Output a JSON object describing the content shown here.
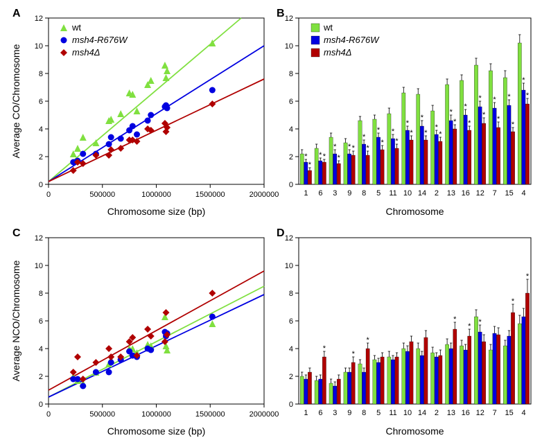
{
  "panelA": {
    "label": "A",
    "type": "scatter",
    "xlabel": "Chromosome size (bp)",
    "ylabel": "Average CO/Chromosome",
    "xlim": [
      0,
      2000000
    ],
    "ylim": [
      0,
      12
    ],
    "yticks": [
      0,
      2,
      4,
      6,
      8,
      10,
      12
    ],
    "xticks": [
      0,
      500000,
      1000000,
      1500000,
      2000000
    ],
    "legend": [
      {
        "label": "wt",
        "color": "#80E040",
        "marker": "triangle"
      },
      {
        "label": "msh4-R676W",
        "color": "#0000E0",
        "marker": "circle",
        "italic": true
      },
      {
        "label": "msh4Δ",
        "color": "#B00000",
        "marker": "diamond",
        "italic": true
      }
    ],
    "series": {
      "wt": {
        "color": "#80E040",
        "marker": "triangle",
        "points": [
          [
            230000,
            2.2
          ],
          [
            270000,
            2.6
          ],
          [
            320000,
            3.4
          ],
          [
            440000,
            3.0
          ],
          [
            560000,
            4.6
          ],
          [
            580000,
            4.7
          ],
          [
            670000,
            5.1
          ],
          [
            750000,
            6.6
          ],
          [
            780000,
            6.5
          ],
          [
            820000,
            5.3
          ],
          [
            920000,
            7.2
          ],
          [
            950000,
            7.5
          ],
          [
            1080000,
            8.6
          ],
          [
            1100000,
            8.2
          ],
          [
            1090000,
            7.7
          ],
          [
            1520000,
            10.2
          ]
        ],
        "line": {
          "intercept": 0.2,
          "slope": 6.6e-06
        }
      },
      "msh4R676W": {
        "color": "#0000E0",
        "marker": "circle",
        "points": [
          [
            230000,
            1.6
          ],
          [
            270000,
            1.7
          ],
          [
            320000,
            2.2
          ],
          [
            440000,
            2.2
          ],
          [
            560000,
            2.9
          ],
          [
            580000,
            3.4
          ],
          [
            670000,
            3.3
          ],
          [
            750000,
            3.9
          ],
          [
            780000,
            4.2
          ],
          [
            820000,
            3.6
          ],
          [
            920000,
            4.6
          ],
          [
            950000,
            5.0
          ],
          [
            1080000,
            5.6
          ],
          [
            1100000,
            5.5
          ],
          [
            1090000,
            5.7
          ],
          [
            1520000,
            6.8
          ]
        ],
        "line": {
          "intercept": 0.2,
          "slope": 4.9e-06
        }
      },
      "msh4D": {
        "color": "#B00000",
        "marker": "diamond",
        "points": [
          [
            230000,
            1.0
          ],
          [
            270000,
            1.6
          ],
          [
            320000,
            1.5
          ],
          [
            440000,
            2.1
          ],
          [
            560000,
            2.1
          ],
          [
            580000,
            2.5
          ],
          [
            670000,
            2.6
          ],
          [
            750000,
            3.2
          ],
          [
            780000,
            3.2
          ],
          [
            820000,
            3.1
          ],
          [
            920000,
            4.0
          ],
          [
            950000,
            3.9
          ],
          [
            1080000,
            4.4
          ],
          [
            1100000,
            4.1
          ],
          [
            1090000,
            3.8
          ],
          [
            1520000,
            5.8
          ]
        ],
        "line": {
          "intercept": 0.2,
          "slope": 3.7e-06
        }
      }
    }
  },
  "panelB": {
    "label": "B",
    "type": "bar",
    "xlabel": "Chromosome",
    "ylabel": "",
    "ylim": [
      0,
      12
    ],
    "yticks": [
      0,
      2,
      4,
      6,
      8,
      10,
      12
    ],
    "categories": [
      "1",
      "6",
      "3",
      "9",
      "8",
      "5",
      "11",
      "10",
      "14",
      "2",
      "13",
      "16",
      "12",
      "7",
      "15",
      "4"
    ],
    "legend": [
      {
        "label": "wt",
        "color": "#80E040"
      },
      {
        "label": "msh4-R676W",
        "color": "#0000E0",
        "italic": true
      },
      {
        "label": "msh4Δ",
        "color": "#B00000",
        "italic": true
      }
    ],
    "bars": {
      "wt": {
        "color": "#80E040",
        "values": [
          2.2,
          2.6,
          3.4,
          3.0,
          4.6,
          4.7,
          5.1,
          6.6,
          6.5,
          5.3,
          7.2,
          7.5,
          8.6,
          8.2,
          7.7,
          10.2
        ],
        "err": [
          0.3,
          0.3,
          0.3,
          0.3,
          0.3,
          0.3,
          0.4,
          0.4,
          0.4,
          0.4,
          0.4,
          0.4,
          0.5,
          0.5,
          0.5,
          0.6
        ],
        "stars": []
      },
      "msh4R676W": {
        "color": "#0000E0",
        "values": [
          1.6,
          1.7,
          2.2,
          2.2,
          2.9,
          3.4,
          3.3,
          3.9,
          4.2,
          3.6,
          4.6,
          5.0,
          5.6,
          5.5,
          5.7,
          6.8
        ],
        "err": [
          0.2,
          0.2,
          0.3,
          0.3,
          0.3,
          0.3,
          0.3,
          0.3,
          0.4,
          0.3,
          0.4,
          0.4,
          0.4,
          0.4,
          0.4,
          0.5
        ],
        "stars": [
          0,
          1,
          2,
          3,
          4,
          5,
          6,
          7,
          8,
          9,
          10,
          11,
          12,
          13,
          14,
          15
        ]
      },
      "msh4D": {
        "color": "#B00000",
        "values": [
          1.0,
          1.6,
          1.5,
          2.1,
          2.1,
          2.5,
          2.6,
          3.2,
          3.2,
          3.1,
          4.0,
          3.9,
          4.4,
          4.1,
          3.8,
          5.8
        ],
        "err": [
          0.2,
          0.2,
          0.2,
          0.3,
          0.3,
          0.3,
          0.3,
          0.3,
          0.3,
          0.3,
          0.3,
          0.3,
          0.4,
          0.4,
          0.3,
          0.4
        ],
        "stars": [
          0,
          1,
          2,
          3,
          4,
          5,
          6,
          7,
          8,
          9,
          10,
          11,
          12,
          13,
          14,
          15
        ]
      }
    }
  },
  "panelC": {
    "label": "C",
    "type": "scatter",
    "xlabel": "Chromosome size (bp)",
    "ylabel": "Average NCO/Chromosome",
    "xlim": [
      0,
      2000000
    ],
    "ylim": [
      0,
      12
    ],
    "yticks": [
      0,
      2,
      4,
      6,
      8,
      10,
      12
    ],
    "xticks": [
      0,
      500000,
      1000000,
      1500000,
      2000000
    ],
    "series": {
      "wt": {
        "color": "#80E040",
        "marker": "triangle",
        "points": [
          [
            230000,
            2.0
          ],
          [
            270000,
            1.7
          ],
          [
            320000,
            1.5
          ],
          [
            440000,
            2.3
          ],
          [
            560000,
            2.9
          ],
          [
            580000,
            3.2
          ],
          [
            670000,
            3.4
          ],
          [
            750000,
            4.0
          ],
          [
            780000,
            4.0
          ],
          [
            820000,
            3.7
          ],
          [
            920000,
            4.3
          ],
          [
            950000,
            4.2
          ],
          [
            1080000,
            6.3
          ],
          [
            1100000,
            3.9
          ],
          [
            1090000,
            4.2
          ],
          [
            1520000,
            5.8
          ]
        ],
        "line": {
          "intercept": 0.5,
          "slope": 4e-06
        }
      },
      "msh4R676W": {
        "color": "#0000E0",
        "marker": "circle",
        "points": [
          [
            230000,
            1.8
          ],
          [
            270000,
            1.8
          ],
          [
            320000,
            1.3
          ],
          [
            440000,
            2.3
          ],
          [
            560000,
            2.3
          ],
          [
            580000,
            3.0
          ],
          [
            670000,
            3.2
          ],
          [
            750000,
            3.8
          ],
          [
            780000,
            3.5
          ],
          [
            820000,
            3.4
          ],
          [
            920000,
            4.0
          ],
          [
            950000,
            3.9
          ],
          [
            1080000,
            5.2
          ],
          [
            1100000,
            5.1
          ],
          [
            1090000,
            4.9
          ],
          [
            1520000,
            6.3
          ]
        ],
        "line": {
          "intercept": 0.5,
          "slope": 3.7e-06
        }
      },
      "msh4D": {
        "color": "#B00000",
        "marker": "diamond",
        "points": [
          [
            230000,
            2.3
          ],
          [
            270000,
            3.4
          ],
          [
            320000,
            1.8
          ],
          [
            440000,
            3.0
          ],
          [
            560000,
            4.0
          ],
          [
            580000,
            3.4
          ],
          [
            670000,
            3.4
          ],
          [
            750000,
            4.5
          ],
          [
            780000,
            4.8
          ],
          [
            820000,
            3.5
          ],
          [
            920000,
            5.4
          ],
          [
            950000,
            4.9
          ],
          [
            1080000,
            4.5
          ],
          [
            1100000,
            5.0
          ],
          [
            1090000,
            6.6
          ],
          [
            1520000,
            8.0
          ]
        ],
        "line": {
          "intercept": 1.0,
          "slope": 4.3e-06
        }
      }
    }
  },
  "panelD": {
    "label": "D",
    "type": "bar",
    "xlabel": "Chromosome",
    "ylabel": "",
    "ylim": [
      0,
      12
    ],
    "yticks": [
      0,
      2,
      4,
      6,
      8,
      10,
      12
    ],
    "categories": [
      "1",
      "6",
      "3",
      "9",
      "8",
      "5",
      "11",
      "10",
      "14",
      "2",
      "13",
      "16",
      "12",
      "7",
      "15",
      "4"
    ],
    "bars": {
      "wt": {
        "color": "#80E040",
        "values": [
          2.0,
          1.7,
          1.5,
          2.3,
          2.9,
          3.2,
          3.4,
          4.0,
          4.0,
          3.7,
          4.3,
          4.2,
          6.3,
          3.9,
          4.2,
          5.8
        ],
        "err": [
          0.3,
          0.3,
          0.3,
          0.3,
          0.3,
          0.3,
          0.4,
          0.4,
          0.4,
          0.4,
          0.4,
          0.4,
          0.5,
          0.4,
          0.4,
          0.6
        ],
        "stars": []
      },
      "msh4R676W": {
        "color": "#0000E0",
        "values": [
          1.8,
          1.8,
          1.3,
          2.3,
          2.3,
          3.0,
          3.2,
          3.8,
          3.5,
          3.4,
          4.0,
          3.9,
          5.2,
          5.1,
          4.9,
          6.3
        ],
        "err": [
          0.3,
          0.3,
          0.3,
          0.3,
          0.3,
          0.3,
          0.3,
          0.4,
          0.3,
          0.3,
          0.4,
          0.4,
          0.5,
          0.5,
          0.4,
          0.6
        ],
        "stars": [
          12
        ]
      },
      "msh4D": {
        "color": "#B00000",
        "values": [
          2.3,
          3.4,
          1.8,
          3.0,
          4.0,
          3.4,
          3.4,
          4.5,
          4.8,
          3.5,
          5.4,
          4.9,
          4.5,
          5.0,
          6.6,
          8.0
        ],
        "err": [
          0.3,
          0.4,
          0.3,
          0.4,
          0.4,
          0.3,
          0.3,
          0.4,
          0.5,
          0.4,
          0.5,
          0.5,
          0.5,
          0.5,
          0.6,
          1.0
        ],
        "stars": [
          1,
          3,
          4,
          10,
          11,
          14,
          15
        ]
      }
    }
  },
  "style": {
    "axis_color": "#000000",
    "tick_fontsize": 11,
    "label_fontsize": 14,
    "legend_fontsize": 13,
    "panel_label_fontsize": 16,
    "panel_label_weight": "bold",
    "marker_size": 5,
    "line_width": 1.8,
    "bar_group_width": 0.8,
    "background": "#ffffff"
  }
}
